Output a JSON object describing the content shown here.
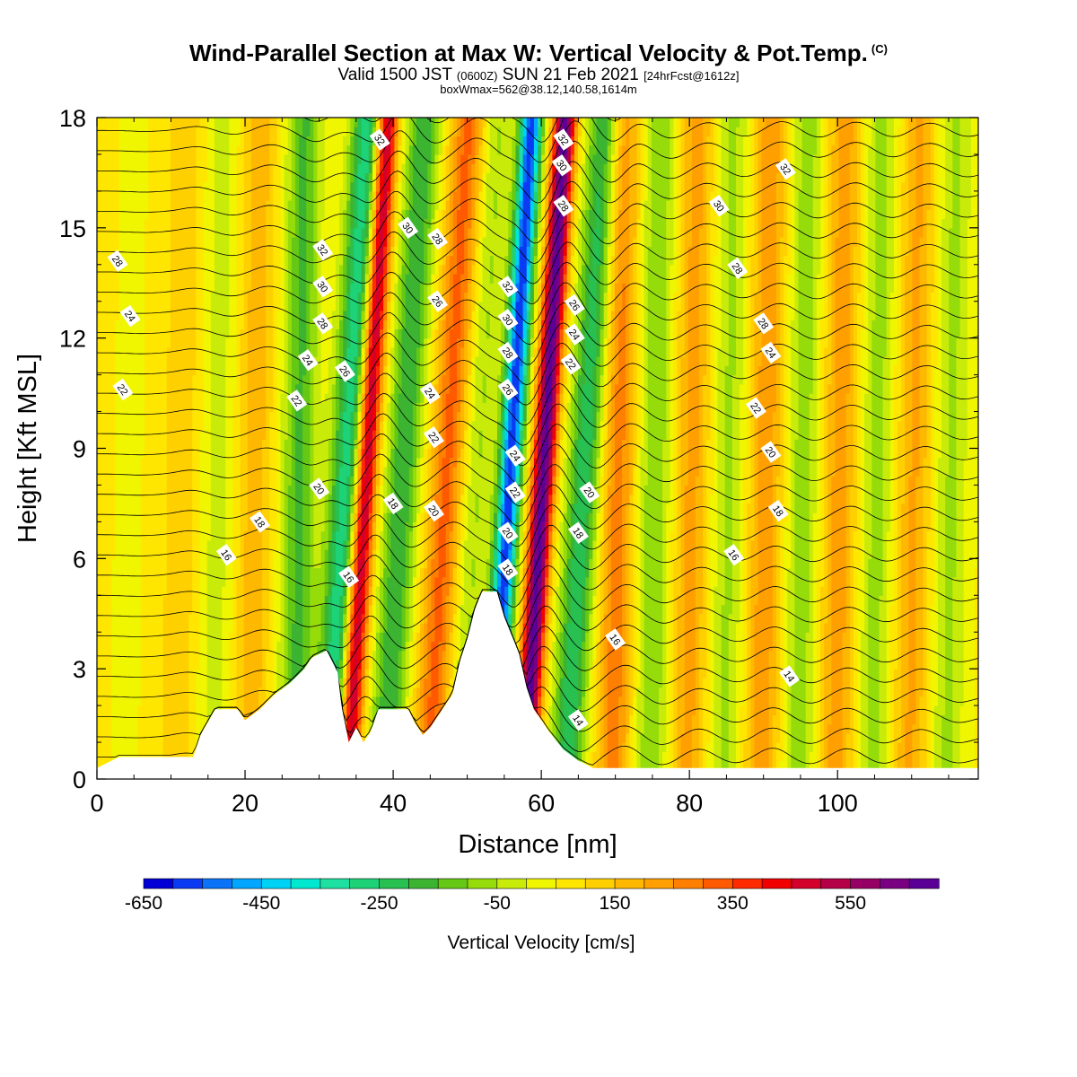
{
  "header": {
    "title": "Wind-Parallel Section at Max W: Vertical Velocity & Pot.Temp.",
    "title_mark": "(C)",
    "valid_a": "Valid 1500 JST",
    "valid_utc": "(0600Z)",
    "valid_b": "SUN 21 Feb 2021",
    "forecast": "[24hrFcst@1612z]",
    "box_info": "boxWmax=562@38.12,140.58,1614m"
  },
  "chart_data": {
    "type": "heatmap",
    "xlabel": "Distance [nm]",
    "ylabel": "Height [Kft MSL]",
    "xlim": [
      0,
      119
    ],
    "ylim": [
      0,
      18
    ],
    "x_ticks": [
      "0",
      "20",
      "40",
      "60",
      "80",
      "100"
    ],
    "y_ticks": [
      "0",
      "3",
      "6",
      "9",
      "12",
      "15",
      "18"
    ],
    "field": "vertical velocity",
    "bands": [
      {
        "x": 4,
        "w": -20
      },
      {
        "x": 11,
        "w": 80
      },
      {
        "x": 16,
        "w": -80
      },
      {
        "x": 21,
        "w": 120
      },
      {
        "x": 27,
        "w": -220
      },
      {
        "x": 32.5,
        "w": -360
      },
      {
        "x": 35,
        "w": 520
      },
      {
        "x": 40,
        "w": -260
      },
      {
        "x": 46,
        "w": 260
      },
      {
        "x": 50,
        "w": -120
      },
      {
        "x": 54.5,
        "w": -650
      },
      {
        "x": 59,
        "w": 620
      },
      {
        "x": 64.5,
        "w": -300
      },
      {
        "x": 70,
        "w": 220
      },
      {
        "x": 75,
        "w": -160
      },
      {
        "x": 80,
        "w": 160
      },
      {
        "x": 85,
        "w": -120
      },
      {
        "x": 90,
        "w": 180
      },
      {
        "x": 95,
        "w": -140
      },
      {
        "x": 100,
        "w": 170
      },
      {
        "x": 105,
        "w": -130
      },
      {
        "x": 110,
        "w": 150
      },
      {
        "x": 115,
        "w": -120
      }
    ],
    "terrain": [
      [
        0,
        0.3
      ],
      [
        3,
        0.6
      ],
      [
        13,
        0.6
      ],
      [
        14,
        1.2
      ],
      [
        16,
        1.9
      ],
      [
        19,
        1.9
      ],
      [
        20,
        1.6
      ],
      [
        22,
        1.9
      ],
      [
        24,
        2.3
      ],
      [
        26,
        2.6
      ],
      [
        28,
        3.0
      ],
      [
        29,
        3.3
      ],
      [
        31,
        3.5
      ],
      [
        32.5,
        2.9
      ],
      [
        33,
        2.0
      ],
      [
        34,
        1.0
      ],
      [
        35,
        1.4
      ],
      [
        36,
        1.0
      ],
      [
        37,
        1.3
      ],
      [
        38,
        1.9
      ],
      [
        42,
        1.9
      ],
      [
        43,
        1.5
      ],
      [
        44,
        1.2
      ],
      [
        45,
        1.4
      ],
      [
        46,
        1.7
      ],
      [
        48,
        2.3
      ],
      [
        49,
        3.2
      ],
      [
        50,
        3.8
      ],
      [
        51,
        4.6
      ],
      [
        52,
        5.1
      ],
      [
        54,
        5.1
      ],
      [
        55,
        4.4
      ],
      [
        57,
        3.4
      ],
      [
        58,
        2.5
      ],
      [
        59,
        1.9
      ],
      [
        61,
        1.3
      ],
      [
        63,
        0.8
      ],
      [
        65,
        0.5
      ],
      [
        67,
        0.3
      ],
      [
        119,
        0.3
      ]
    ],
    "potential_temperature": {
      "levels": [
        14,
        16,
        18,
        20,
        22,
        24,
        26,
        28,
        30,
        32
      ],
      "labels": [
        {
          "text": "32",
          "x": 38.2,
          "y": 17.4
        },
        {
          "text": "32",
          "x": 63.0,
          "y": 17.4
        },
        {
          "text": "30",
          "x": 62.8,
          "y": 16.7
        },
        {
          "text": "32",
          "x": 93.0,
          "y": 16.6
        },
        {
          "text": "28",
          "x": 63.0,
          "y": 15.6
        },
        {
          "text": "30",
          "x": 84.0,
          "y": 15.6
        },
        {
          "text": "30",
          "x": 42.0,
          "y": 15.0
        },
        {
          "text": "28",
          "x": 46.0,
          "y": 14.7
        },
        {
          "text": "32",
          "x": 30.5,
          "y": 14.4
        },
        {
          "text": "28",
          "x": 2.8,
          "y": 14.1
        },
        {
          "text": "28",
          "x": 86.5,
          "y": 13.9
        },
        {
          "text": "30",
          "x": 30.5,
          "y": 13.4
        },
        {
          "text": "32",
          "x": 55.5,
          "y": 13.4
        },
        {
          "text": "26",
          "x": 46.0,
          "y": 13.0
        },
        {
          "text": "26",
          "x": 64.5,
          "y": 12.9
        },
        {
          "text": "28",
          "x": 30.5,
          "y": 12.4
        },
        {
          "text": "24",
          "x": 4.5,
          "y": 12.6
        },
        {
          "text": "30",
          "x": 55.5,
          "y": 12.5
        },
        {
          "text": "28",
          "x": 90.0,
          "y": 12.4
        },
        {
          "text": "24",
          "x": 64.5,
          "y": 12.1
        },
        {
          "text": "28",
          "x": 55.5,
          "y": 11.6
        },
        {
          "text": "24",
          "x": 28.5,
          "y": 11.4
        },
        {
          "text": "24",
          "x": 91.0,
          "y": 11.6
        },
        {
          "text": "22",
          "x": 64.0,
          "y": 11.3
        },
        {
          "text": "26",
          "x": 33.5,
          "y": 11.1
        },
        {
          "text": "22",
          "x": 3.5,
          "y": 10.6
        },
        {
          "text": "24",
          "x": 45.0,
          "y": 10.5
        },
        {
          "text": "26",
          "x": 55.5,
          "y": 10.6
        },
        {
          "text": "22",
          "x": 27.0,
          "y": 10.3
        },
        {
          "text": "22",
          "x": 89.0,
          "y": 10.1
        },
        {
          "text": "22",
          "x": 45.5,
          "y": 9.3
        },
        {
          "text": "24",
          "x": 56.5,
          "y": 8.8
        },
        {
          "text": "20",
          "x": 91.0,
          "y": 8.9
        },
        {
          "text": "20",
          "x": 30.0,
          "y": 7.9
        },
        {
          "text": "22",
          "x": 56.5,
          "y": 7.8
        },
        {
          "text": "20",
          "x": 66.5,
          "y": 7.8
        },
        {
          "text": "18",
          "x": 40.0,
          "y": 7.5
        },
        {
          "text": "20",
          "x": 45.5,
          "y": 7.3
        },
        {
          "text": "18",
          "x": 92.0,
          "y": 7.3
        },
        {
          "text": "18",
          "x": 22.0,
          "y": 7.0
        },
        {
          "text": "20",
          "x": 55.5,
          "y": 6.7
        },
        {
          "text": "18",
          "x": 65.0,
          "y": 6.7
        },
        {
          "text": "16",
          "x": 17.5,
          "y": 6.1
        },
        {
          "text": "18",
          "x": 55.5,
          "y": 5.7
        },
        {
          "text": "16",
          "x": 86.0,
          "y": 6.1
        },
        {
          "text": "16",
          "x": 34.0,
          "y": 5.5
        },
        {
          "text": "16",
          "x": 70.0,
          "y": 3.8
        },
        {
          "text": "14",
          "x": 93.5,
          "y": 2.8
        },
        {
          "text": "14",
          "x": 65.0,
          "y": 1.6
        }
      ]
    },
    "colorbar": {
      "title": "Vertical Velocity [cm/s]",
      "labels": [
        "-650",
        "-450",
        "-250",
        "-50",
        "150",
        "350",
        "550"
      ],
      "colors": [
        "#0000d6",
        "#0a3af2",
        "#0a73f7",
        "#00a6ff",
        "#00d2f5",
        "#00e8d0",
        "#1ee0a0",
        "#1ed278",
        "#28c050",
        "#3cb432",
        "#64c814",
        "#96dc0a",
        "#c8eb0a",
        "#f0f500",
        "#ffe600",
        "#ffd000",
        "#ffb800",
        "#ffa000",
        "#ff8000",
        "#ff5a00",
        "#ff2a00",
        "#f00000",
        "#d2002a",
        "#b40046",
        "#960064",
        "#7a0082",
        "#5a0096"
      ]
    }
  }
}
